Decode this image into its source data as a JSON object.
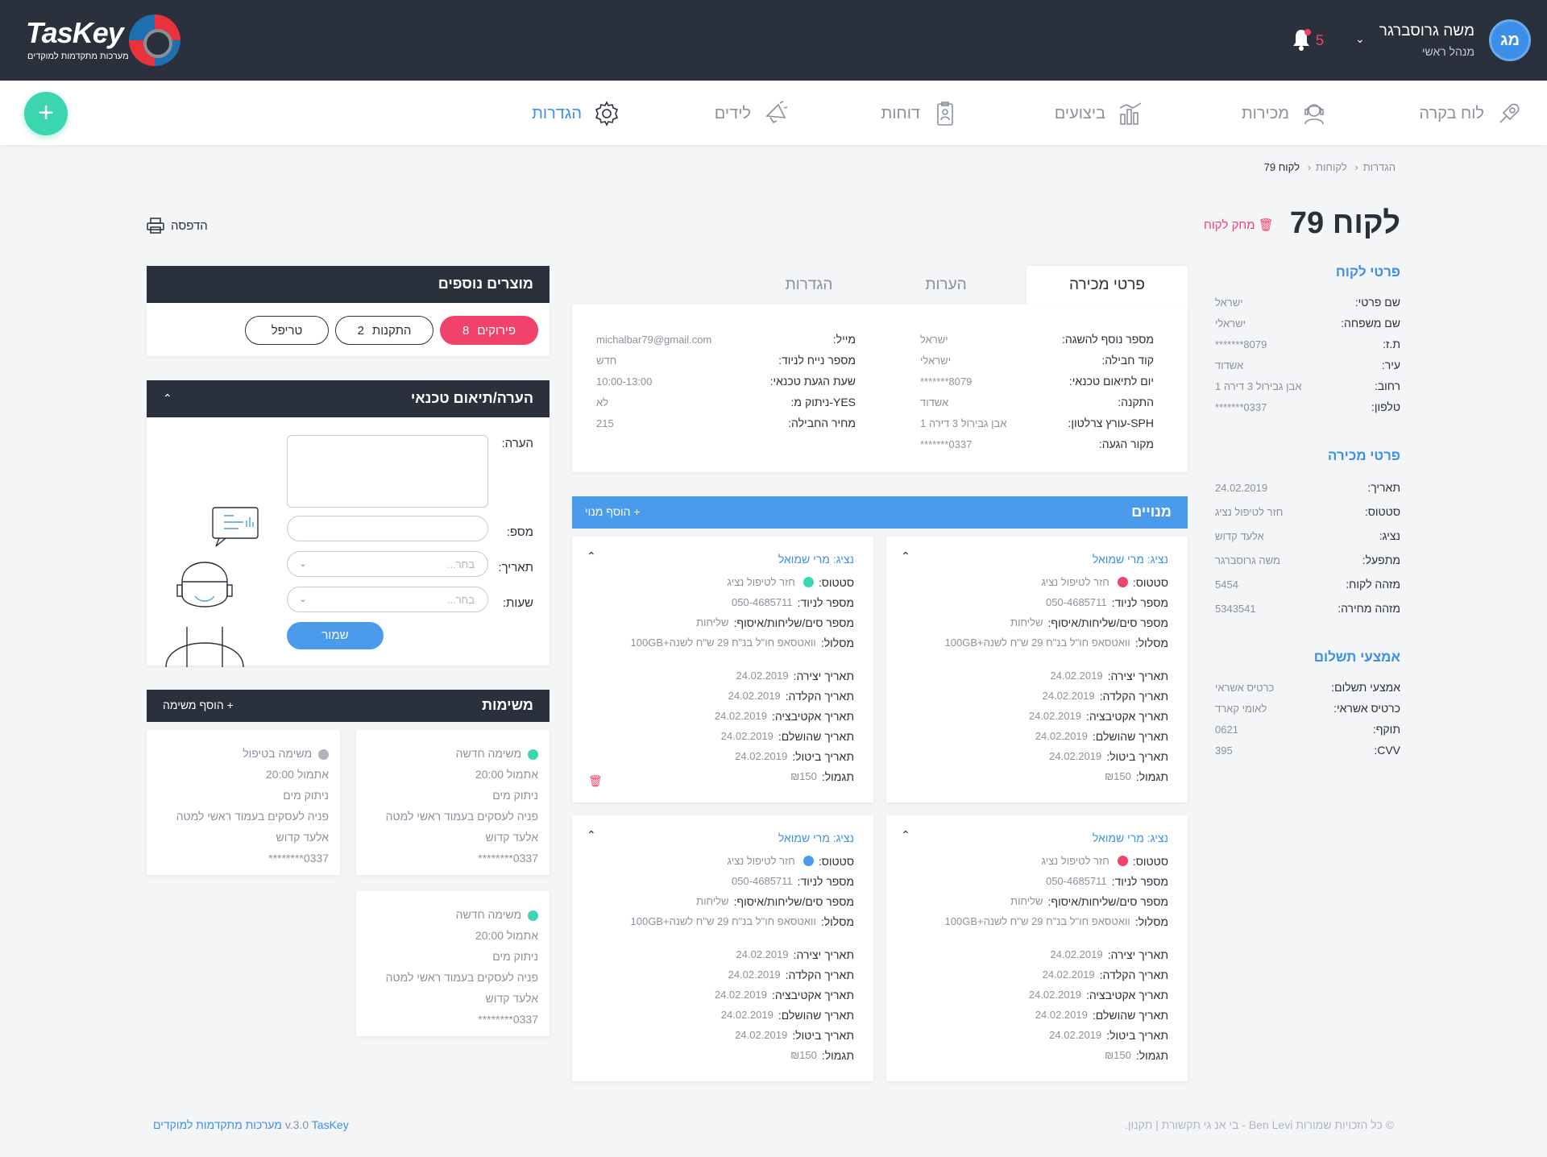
{
  "app": {
    "brand": "TasKey",
    "tagline": "מערכות מתקדמות למוקדים"
  },
  "user": {
    "initials": "מג",
    "name": "משה גרוסברגר",
    "role": "מנהל ראשי",
    "notifications": "5"
  },
  "nav": {
    "items": [
      {
        "label": "לוח בקרה",
        "icon": "rocket-icon"
      },
      {
        "label": "מכירות",
        "icon": "headset-agent-icon"
      },
      {
        "label": "ביצועים",
        "icon": "bar-chart-icon"
      },
      {
        "label": "דוחות",
        "icon": "report-clipboard-icon"
      },
      {
        "label": "לידים",
        "icon": "megaphone-icon"
      },
      {
        "label": "הגדרות",
        "icon": "gear-icon"
      }
    ],
    "active": "הגדרות"
  },
  "breadcrumb": [
    "הגדרות",
    "לקוחות",
    "לקוח 79"
  ],
  "page": {
    "title": "לקוח 79",
    "delete_label": "מחק לקוח",
    "print_label": "הדפסה"
  },
  "customer_details": {
    "title": "פרטי לקוח",
    "rows": [
      {
        "k": "שם פרטי:",
        "v": "ישראל"
      },
      {
        "k": "שם משפחה:",
        "v": "ישראלי"
      },
      {
        "k": "ת.ז:",
        "v": "8079*******"
      },
      {
        "k": "עיר:",
        "v": "אשדוד"
      },
      {
        "k": "רחוב:",
        "v": "אבן גבירול 3 דירה 1"
      },
      {
        "k": "טלפון:",
        "v": "0337*******"
      }
    ]
  },
  "sale_summary": {
    "title": "פרטי מכירה",
    "rows": [
      {
        "k": "תאריך:",
        "v": "24.02.2019"
      },
      {
        "k": "סטטוס:",
        "v": "חזר לטיפול נציג"
      },
      {
        "k": "נציג:",
        "v": "אלעד קדוש"
      },
      {
        "k": "מתפעל:",
        "v": "משה גרוסברגר"
      },
      {
        "k": "מזהה לקוח:",
        "v": "5454"
      },
      {
        "k": "מזהה מחירה:",
        "v": "5343541"
      }
    ]
  },
  "payment": {
    "title": "אמצעי תשלום",
    "rows": [
      {
        "k": "אמצעי תשלום:",
        "v": "כרטיס אשראי"
      },
      {
        "k": "כרטיס אשראי:",
        "v": "לאומי קארד"
      },
      {
        "k": "תוקף:",
        "v": "0621"
      },
      {
        "k": "CVV:",
        "v": "395"
      }
    ]
  },
  "tabs": [
    {
      "label": "פרטי מכירה",
      "active": true
    },
    {
      "label": "הערות",
      "active": false
    },
    {
      "label": "הגדרות",
      "active": false
    }
  ],
  "sale_details": {
    "col_right": [
      {
        "k": "מספר נוסף להשגה:",
        "v": "ישראל"
      },
      {
        "k": "קוד חבילה:",
        "v": "ישראלי"
      },
      {
        "k": "יום לתיאום טכנאי:",
        "v": "8079*******"
      },
      {
        "k": "התקנה:",
        "v": "אשדוד"
      },
      {
        "k": "SPH-עורץ צרלטון:",
        "v": "אבן גבירול 3 דירה 1"
      },
      {
        "k": "מקור הגעה:",
        "v": "0337*******"
      }
    ],
    "col_left": [
      {
        "k": "מייל:",
        "v": "michalbar79@gmail.com"
      },
      {
        "k": "מספר נייח לניוד:",
        "v": "חדש"
      },
      {
        "k": "שעת הגעת טכנאי:",
        "v": "10:00-13:00"
      },
      {
        "k": "YES-ניתוק מ:",
        "v": "לא"
      },
      {
        "k": "מחיר החבילה:",
        "v": "215"
      }
    ]
  },
  "subscriptions": {
    "title": "מנויים",
    "add_label": "הוסף מנוי",
    "cards": [
      {
        "agent": "נציג: מרי שמואל",
        "status_color": "#f0426b",
        "show_trash": false
      },
      {
        "agent": "נציג: מרי שמואל",
        "status_color": "#3ad6b0",
        "show_trash": true
      },
      {
        "agent": "נציג: מרי שמואל",
        "status_color": "#f0426b",
        "show_trash": false
      },
      {
        "agent": "נציג: מרי שמואל",
        "status_color": "#4b9bec",
        "show_trash": false
      }
    ],
    "card_rows_top": [
      {
        "k": "סטטוס:",
        "v": "חזר לטיפול נציג",
        "dot": true
      },
      {
        "k": "מספר לניוד:",
        "v": "050-4685711"
      },
      {
        "k": "מספר סים/שליחות/איסוף:",
        "v": "שליחות"
      },
      {
        "k": "מסלול:",
        "v": "וואטסאפ חו\"ל בנ\"ח 29 ש\"ח לשנה+100GB"
      }
    ],
    "card_rows_bottom": [
      {
        "k": "תאריך יצירה:",
        "v": "24.02.2019"
      },
      {
        "k": "תאריך הקלדה:",
        "v": "24.02.2019"
      },
      {
        "k": "תאריך אקטיבציה:",
        "v": "24.02.2019"
      },
      {
        "k": "תאריך שהושלם:",
        "v": "24.02.2019"
      },
      {
        "k": "תאריך ביטול:",
        "v": "24.02.2019"
      },
      {
        "k": "תגמול:",
        "v": "₪150"
      }
    ]
  },
  "extra_products": {
    "title": "מוצרים נוספים",
    "buttons": [
      {
        "label": "פירוקים",
        "count": "8",
        "primary": true
      },
      {
        "label": "התקנות",
        "count": "2",
        "primary": false
      },
      {
        "label": "טריפל",
        "count": "",
        "primary": false
      }
    ]
  },
  "tech_note": {
    "title": "הערה/תיאום טכנאי",
    "note_label": "הערה:",
    "number_label": "מספ:",
    "date_label": "תאריך:",
    "hours_label": "שעות:",
    "select_placeholder": "בחר...",
    "save_label": "שמור"
  },
  "tasks": {
    "title": "משימות",
    "add_label": "הוסף משימה",
    "items": [
      {
        "status": "משימה חדשה",
        "dot": "#3ad6b0",
        "time": "אתמול 20:00",
        "type": "ניתוק מים",
        "desc": "פניה לעסקים בעמוד ראשי למטה",
        "agent": "אלעד קדוש",
        "phone": "0337********"
      },
      {
        "status": "משימה בטיפול",
        "dot": "#b0b5bd",
        "time": "אתמול 20:00",
        "type": "ניתוק מים",
        "desc": "פניה לעסקים בעמוד ראשי למטה",
        "agent": "אלעד קדוש",
        "phone": "0337********"
      },
      {
        "status": "משימה חדשה",
        "dot": "#3ad6b0",
        "time": "אתמול 20:00",
        "type": "ניתוק מים",
        "desc": "פניה לעסקים בעמוד ראשי למטה",
        "agent": "אלעד קדוש",
        "phone": "0337********"
      }
    ]
  },
  "footer": {
    "version": "v.3.0",
    "brand_text": "TasKey מערכות מתקדמות למוקדים",
    "copyright": "© כל הזכויות שמורות  Ben Levi - בי אנ גי תקשורת | תקנון."
  },
  "colors": {
    "accent": "#3b8fe8",
    "dark": "#2b313c",
    "danger": "#f0426b",
    "success": "#3ad6b0"
  }
}
